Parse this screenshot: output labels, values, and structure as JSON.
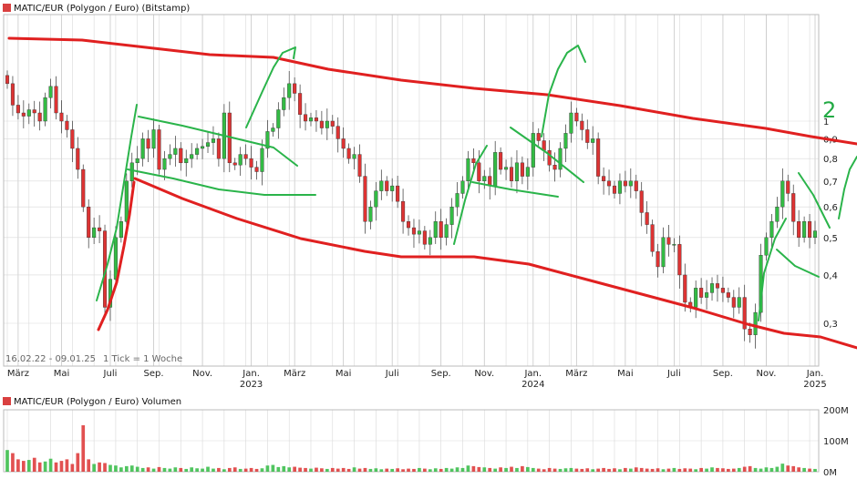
{
  "colors": {
    "up": "#33bb44",
    "down": "#dd3333",
    "trend": "#e02020",
    "drawing": "#2ab44a",
    "grid": "#d9d9d9",
    "legend_square": "#d94040"
  },
  "price_title": "MATIC/EUR (Polygon / Euro) (Bitstamp)",
  "volume_title": "MATIC/EUR (Polygon / Euro) Volumen",
  "info": {
    "range": "16.02.22 - 09.01.25",
    "tick": "1 Tick = 1 Woche"
  },
  "annotation_mark": "2",
  "chart_data": [
    {
      "type": "candlestick",
      "title": "MATIC/EUR (Polygon / Euro) (Bitstamp)",
      "period": "weekly",
      "y_scale": "log",
      "ylim": [
        0.2,
        1.45
      ],
      "y_ticks": [
        "1",
        "0,9",
        "0,8",
        "0,7",
        "0,6",
        "0,5",
        "0,4",
        "0,3"
      ],
      "y_tick_values": [
        1.0,
        0.9,
        0.8,
        0.7,
        0.6,
        0.5,
        0.4,
        0.3
      ],
      "x_ticks": [
        "März",
        "Mai",
        "Juli",
        "Sep.",
        "Nov.",
        "Jan.",
        "März",
        "Mai",
        "Juli",
        "Sep.",
        "Nov.",
        "Jan.",
        "März",
        "Mai",
        "Juli",
        "Sep.",
        "Nov.",
        "Jan."
      ],
      "x_tick_weeks": [
        2,
        10,
        19,
        27,
        36,
        45,
        53,
        62,
        71,
        80,
        88,
        97,
        105,
        114,
        123,
        132,
        140,
        149
      ],
      "year_labels": [
        {
          "label": "2023",
          "week": 45
        },
        {
          "label": "2024",
          "week": 97
        },
        {
          "label": "2025",
          "week": 149
        }
      ],
      "closes": [
        1.25,
        1.1,
        1.05,
        1.03,
        1.07,
        1.05,
        1.0,
        1.15,
        1.23,
        1.05,
        1.0,
        0.95,
        0.85,
        0.75,
        0.6,
        0.5,
        0.53,
        0.52,
        0.33,
        0.39,
        0.5,
        0.55,
        0.7,
        0.78,
        0.8,
        0.9,
        0.85,
        0.95,
        0.75,
        0.8,
        0.82,
        0.85,
        0.78,
        0.8,
        0.82,
        0.85,
        0.86,
        0.88,
        0.9,
        0.8,
        1.05,
        0.78,
        0.77,
        0.82,
        0.8,
        0.76,
        0.74,
        0.85,
        0.94,
        0.96,
        1.07,
        1.15,
        1.25,
        1.18,
        1.04,
        1.0,
        1.02,
        1.0,
        0.96,
        1.0,
        0.97,
        0.9,
        0.85,
        0.8,
        0.82,
        0.72,
        0.55,
        0.6,
        0.66,
        0.7,
        0.66,
        0.68,
        0.62,
        0.55,
        0.53,
        0.51,
        0.52,
        0.48,
        0.5,
        0.55,
        0.5,
        0.54,
        0.6,
        0.65,
        0.7,
        0.8,
        0.78,
        0.7,
        0.72,
        0.68,
        0.83,
        0.75,
        0.76,
        0.7,
        0.78,
        0.72,
        0.76,
        0.93,
        0.89,
        0.84,
        0.77,
        0.75,
        0.85,
        0.93,
        1.05,
        1.0,
        0.95,
        0.88,
        0.9,
        0.72,
        0.7,
        0.68,
        0.65,
        0.7,
        0.68,
        0.7,
        0.66,
        0.58,
        0.54,
        0.46,
        0.42,
        0.5,
        0.48,
        0.48,
        0.4,
        0.34,
        0.33,
        0.37,
        0.35,
        0.36,
        0.38,
        0.37,
        0.36,
        0.35,
        0.33,
        0.35,
        0.29,
        0.28,
        0.32,
        0.45,
        0.5,
        0.55,
        0.6,
        0.7,
        0.65,
        0.55,
        0.5,
        0.55,
        0.5,
        0.52
      ],
      "volumes": [
        70,
        60,
        40,
        35,
        38,
        45,
        30,
        33,
        42,
        30,
        35,
        40,
        25,
        60,
        150,
        40,
        25,
        30,
        28,
        22,
        20,
        14,
        18,
        20,
        16,
        12,
        14,
        10,
        15,
        12,
        10,
        14,
        12,
        9,
        14,
        11,
        10,
        16,
        10,
        12,
        8,
        12,
        14,
        9,
        10,
        12,
        9,
        11,
        20,
        22,
        15,
        18,
        14,
        16,
        13,
        12,
        10,
        13,
        11,
        9,
        12,
        10,
        12,
        9,
        14,
        10,
        12,
        9,
        11,
        8,
        10,
        9,
        11,
        8,
        10,
        9,
        12,
        10,
        8,
        11,
        9,
        12,
        10,
        14,
        12,
        20,
        18,
        15,
        14,
        12,
        10,
        14,
        12,
        16,
        12,
        18,
        15,
        12,
        10,
        8,
        12,
        10,
        9,
        11,
        12,
        10,
        9,
        11,
        8,
        10,
        12,
        9,
        11,
        8,
        12,
        10,
        14,
        12,
        10,
        9,
        11,
        8,
        10,
        12,
        9,
        11,
        10,
        8,
        12,
        10,
        14,
        12,
        11,
        9,
        10,
        12,
        16,
        18,
        12,
        10,
        14,
        12,
        16,
        26,
        20,
        18,
        14,
        12,
        10,
        9
      ]
    },
    {
      "type": "bar",
      "title": "MATIC/EUR (Polygon / Euro) Volumen",
      "ylim": [
        0,
        200
      ],
      "unit": "M",
      "y_ticks": [
        "200M",
        "100M",
        "0M"
      ],
      "y_tick_values": [
        200,
        100,
        0
      ]
    }
  ]
}
